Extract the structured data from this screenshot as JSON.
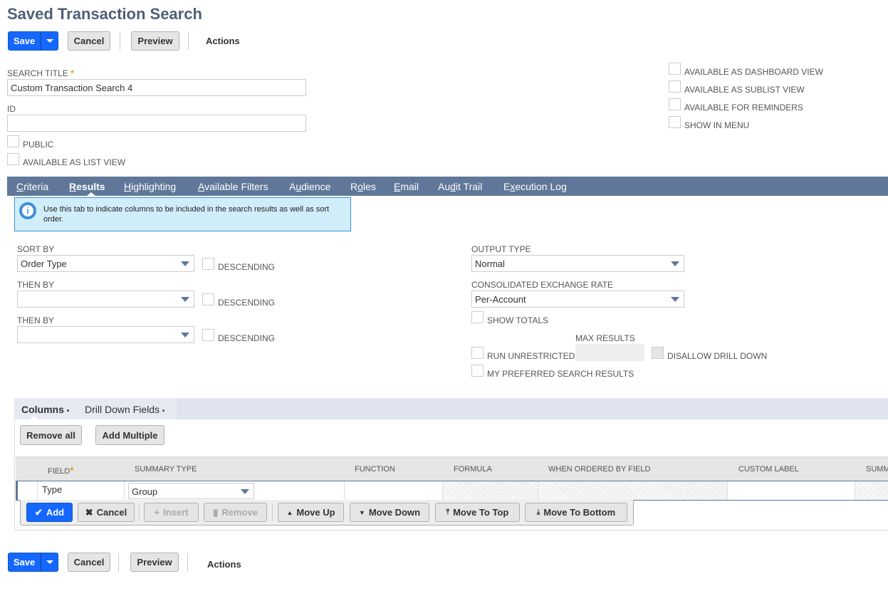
{
  "page": {
    "title": "Saved Transaction Search"
  },
  "toolbar": {
    "save": "Save",
    "cancel": "Cancel",
    "preview": "Preview",
    "actions": "Actions"
  },
  "form": {
    "search_title_label": "SEARCH TITLE",
    "search_title_value": "Custom Transaction Search 4",
    "id_label": "ID",
    "id_value": "",
    "public": "PUBLIC",
    "available_as_list_view": "AVAILABLE AS LIST VIEW",
    "available_as_dashboard_view": "AVAILABLE AS DASHBOARD VIEW",
    "available_as_sublist_view": "AVAILABLE AS SUBLIST VIEW",
    "available_for_reminders": "AVAILABLE FOR REMINDERS",
    "show_in_menu": "SHOW IN MENU"
  },
  "tabs": [
    {
      "pre": "",
      "u": "C",
      "post": "riteria"
    },
    {
      "pre": "",
      "u": "R",
      "post": "esults"
    },
    {
      "pre": "",
      "u": "H",
      "post": "ighlighting"
    },
    {
      "pre": "",
      "u": "A",
      "post": "vailable Filters"
    },
    {
      "pre": "A",
      "u": "u",
      "post": "dience"
    },
    {
      "pre": "R",
      "u": "o",
      "post": "les"
    },
    {
      "pre": "",
      "u": "E",
      "post": "mail"
    },
    {
      "pre": "Au",
      "u": "d",
      "post": "it Trail"
    },
    {
      "pre": "E",
      "u": "x",
      "post": "ecution Log"
    }
  ],
  "info": "Use this tab to indicate columns to be included in the search results as well as sort order.",
  "results": {
    "sort_by_label": "SORT BY",
    "sort_by_value": "Order Type",
    "then_by_label": "THEN BY",
    "then_by_1_value": "",
    "then_by_2_value": "",
    "descending": "DESCENDING",
    "output_type_label": "OUTPUT TYPE",
    "output_type_value": "Normal",
    "exchange_rate_label": "CONSOLIDATED EXCHANGE RATE",
    "exchange_rate_value": "Per-Account",
    "show_totals": "SHOW TOTALS",
    "max_results_label": "MAX RESULTS",
    "max_results_value": "",
    "run_unrestricted": "RUN UNRESTRICTED",
    "disallow_drill_down": "DISALLOW DRILL DOWN",
    "my_preferred": "MY PREFERRED SEARCH RESULTS"
  },
  "subtabs": {
    "columns": "Columns",
    "drill_down": "Drill Down Fields",
    "dot": "•"
  },
  "sublist": {
    "remove_all": "Remove all",
    "add_multiple": "Add Multiple",
    "headers": {
      "field": "FIELD",
      "summary_type": "SUMMARY TYPE",
      "function": "FUNCTION",
      "formula": "FORMULA",
      "when_ordered": "WHEN ORDERED BY FIELD",
      "custom_label": "CUSTOM LABEL",
      "summary_label": "SUMM"
    },
    "row": {
      "field": "Type",
      "summary_type": "Group",
      "function": "",
      "custom_label": ""
    },
    "buttons": {
      "add": "Add",
      "cancel": "Cancel",
      "insert": "Insert",
      "remove": "Remove",
      "move_up": "Move Up",
      "move_down": "Move Down",
      "move_to_top": "Move To Top",
      "move_to_bottom": "Move To Bottom"
    }
  },
  "colors": {
    "primary": "#1467ff",
    "tabbar": "#607799",
    "title": "#4d5f79",
    "info_bg": "#d0eef9"
  }
}
